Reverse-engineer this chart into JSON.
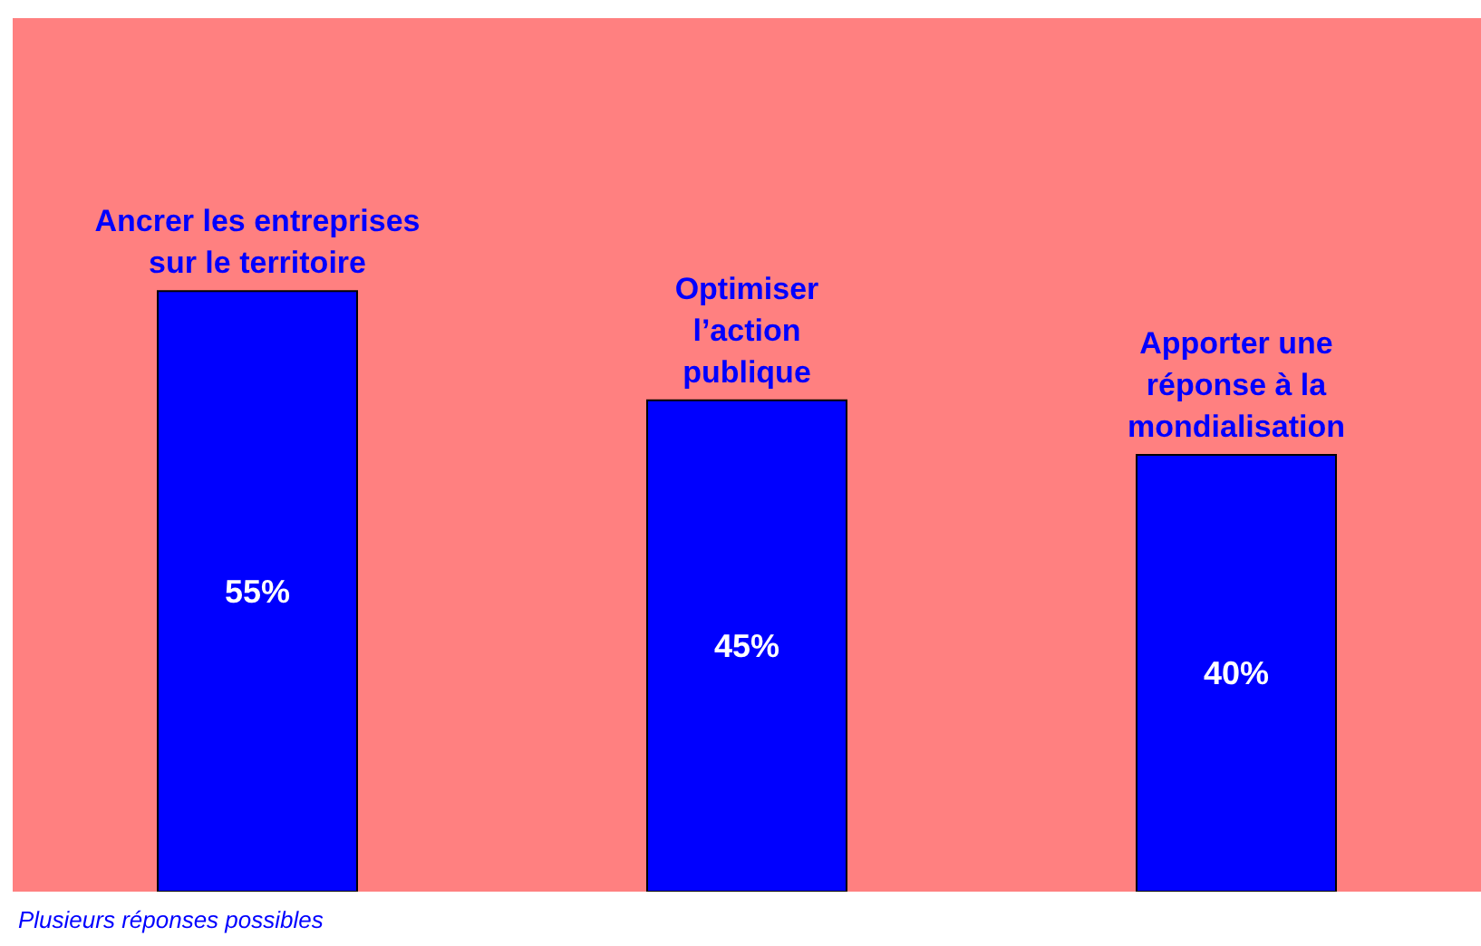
{
  "chart_data": {
    "type": "bar",
    "categories": [
      "Ancrer les entreprises\nsur le territoire",
      "Optimiser\nl’action\npublique",
      "Apporter une\nréponse à la\nmondialisation"
    ],
    "values": [
      55,
      45,
      40
    ],
    "color": "#0000ff",
    "value_labels": [
      "55%",
      "45%",
      "40%"
    ],
    "ylim": [
      0,
      80
    ],
    "tick_labels": false,
    "grid": false,
    "legend": false,
    "annotations": [
      "Plusieurs réponses possibles"
    ]
  }
}
